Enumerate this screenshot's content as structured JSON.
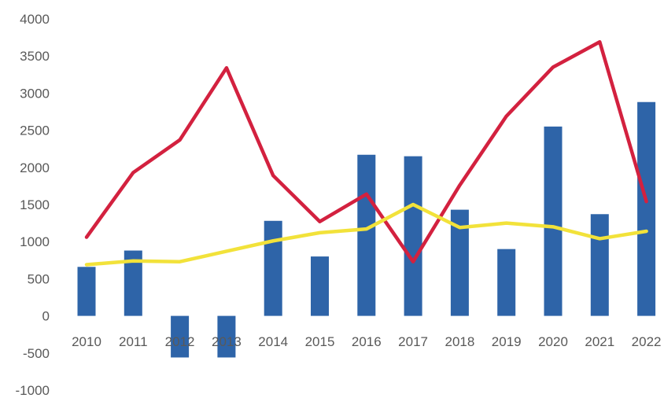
{
  "chart_data": {
    "type": "bar",
    "categories": [
      "2010",
      "2011",
      "2012",
      "2013",
      "2014",
      "2015",
      "2016",
      "2017",
      "2018",
      "2019",
      "2020",
      "2021",
      "2022"
    ],
    "ylim": [
      -1000,
      4000
    ],
    "yticks": [
      4000,
      3500,
      3000,
      2500,
      2000,
      1500,
      1000,
      500,
      0,
      -500,
      -1000
    ],
    "grid": false,
    "title": "",
    "xlabel": "",
    "ylabel": "",
    "series": [
      {
        "kind": "bar",
        "color": "#2E64A8",
        "values": [
          660,
          880,
          -560,
          -560,
          1280,
          800,
          2170,
          2150,
          1430,
          900,
          2550,
          1370,
          2880
        ]
      },
      {
        "kind": "line",
        "color": "#D3213F",
        "values": [
          1060,
          1930,
          2370,
          3340,
          1890,
          1270,
          1640,
          730,
          1760,
          2690,
          3350,
          3690,
          1540
        ]
      },
      {
        "kind": "line",
        "color": "#F2E23A",
        "values": [
          690,
          740,
          730,
          870,
          1010,
          1120,
          1170,
          1500,
          1190,
          1250,
          1200,
          1040,
          1140
        ]
      }
    ]
  }
}
